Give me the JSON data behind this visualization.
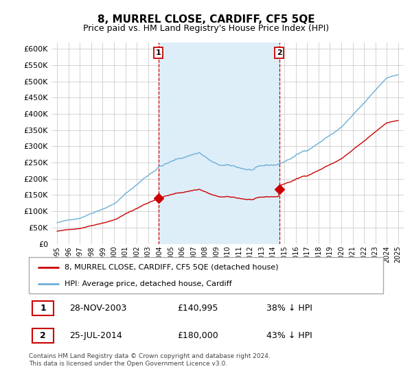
{
  "title": "8, MURREL CLOSE, CARDIFF, CF5 5QE",
  "subtitle": "Price paid vs. HM Land Registry's House Price Index (HPI)",
  "hpi_label": "HPI: Average price, detached house, Cardiff",
  "property_label": "8, MURREL CLOSE, CARDIFF, CF5 5QE (detached house)",
  "footnote": "Contains HM Land Registry data © Crown copyright and database right 2024.\nThis data is licensed under the Open Government Licence v3.0.",
  "purchase_1": {
    "label": "1",
    "date": "28-NOV-2003",
    "price": 140995,
    "pct": "38% ↓ HPI"
  },
  "purchase_2": {
    "label": "2",
    "date": "25-JUL-2014",
    "price": 180000,
    "pct": "43% ↓ HPI"
  },
  "purchase_1_x": 2003.9,
  "purchase_2_x": 2014.55,
  "ylim": [
    0,
    620000
  ],
  "yticks": [
    0,
    50000,
    100000,
    150000,
    200000,
    250000,
    300000,
    350000,
    400000,
    450000,
    500000,
    550000,
    600000
  ],
  "xlim": [
    1994.5,
    2025.5
  ],
  "hpi_color": "#6baed6",
  "shade_color": "#ddeef8",
  "property_color": "#cc0000",
  "vline_color": "#cc0000",
  "grid_color": "#cccccc",
  "background_color": "#ffffff",
  "title_fontsize": 11,
  "subtitle_fontsize": 9
}
